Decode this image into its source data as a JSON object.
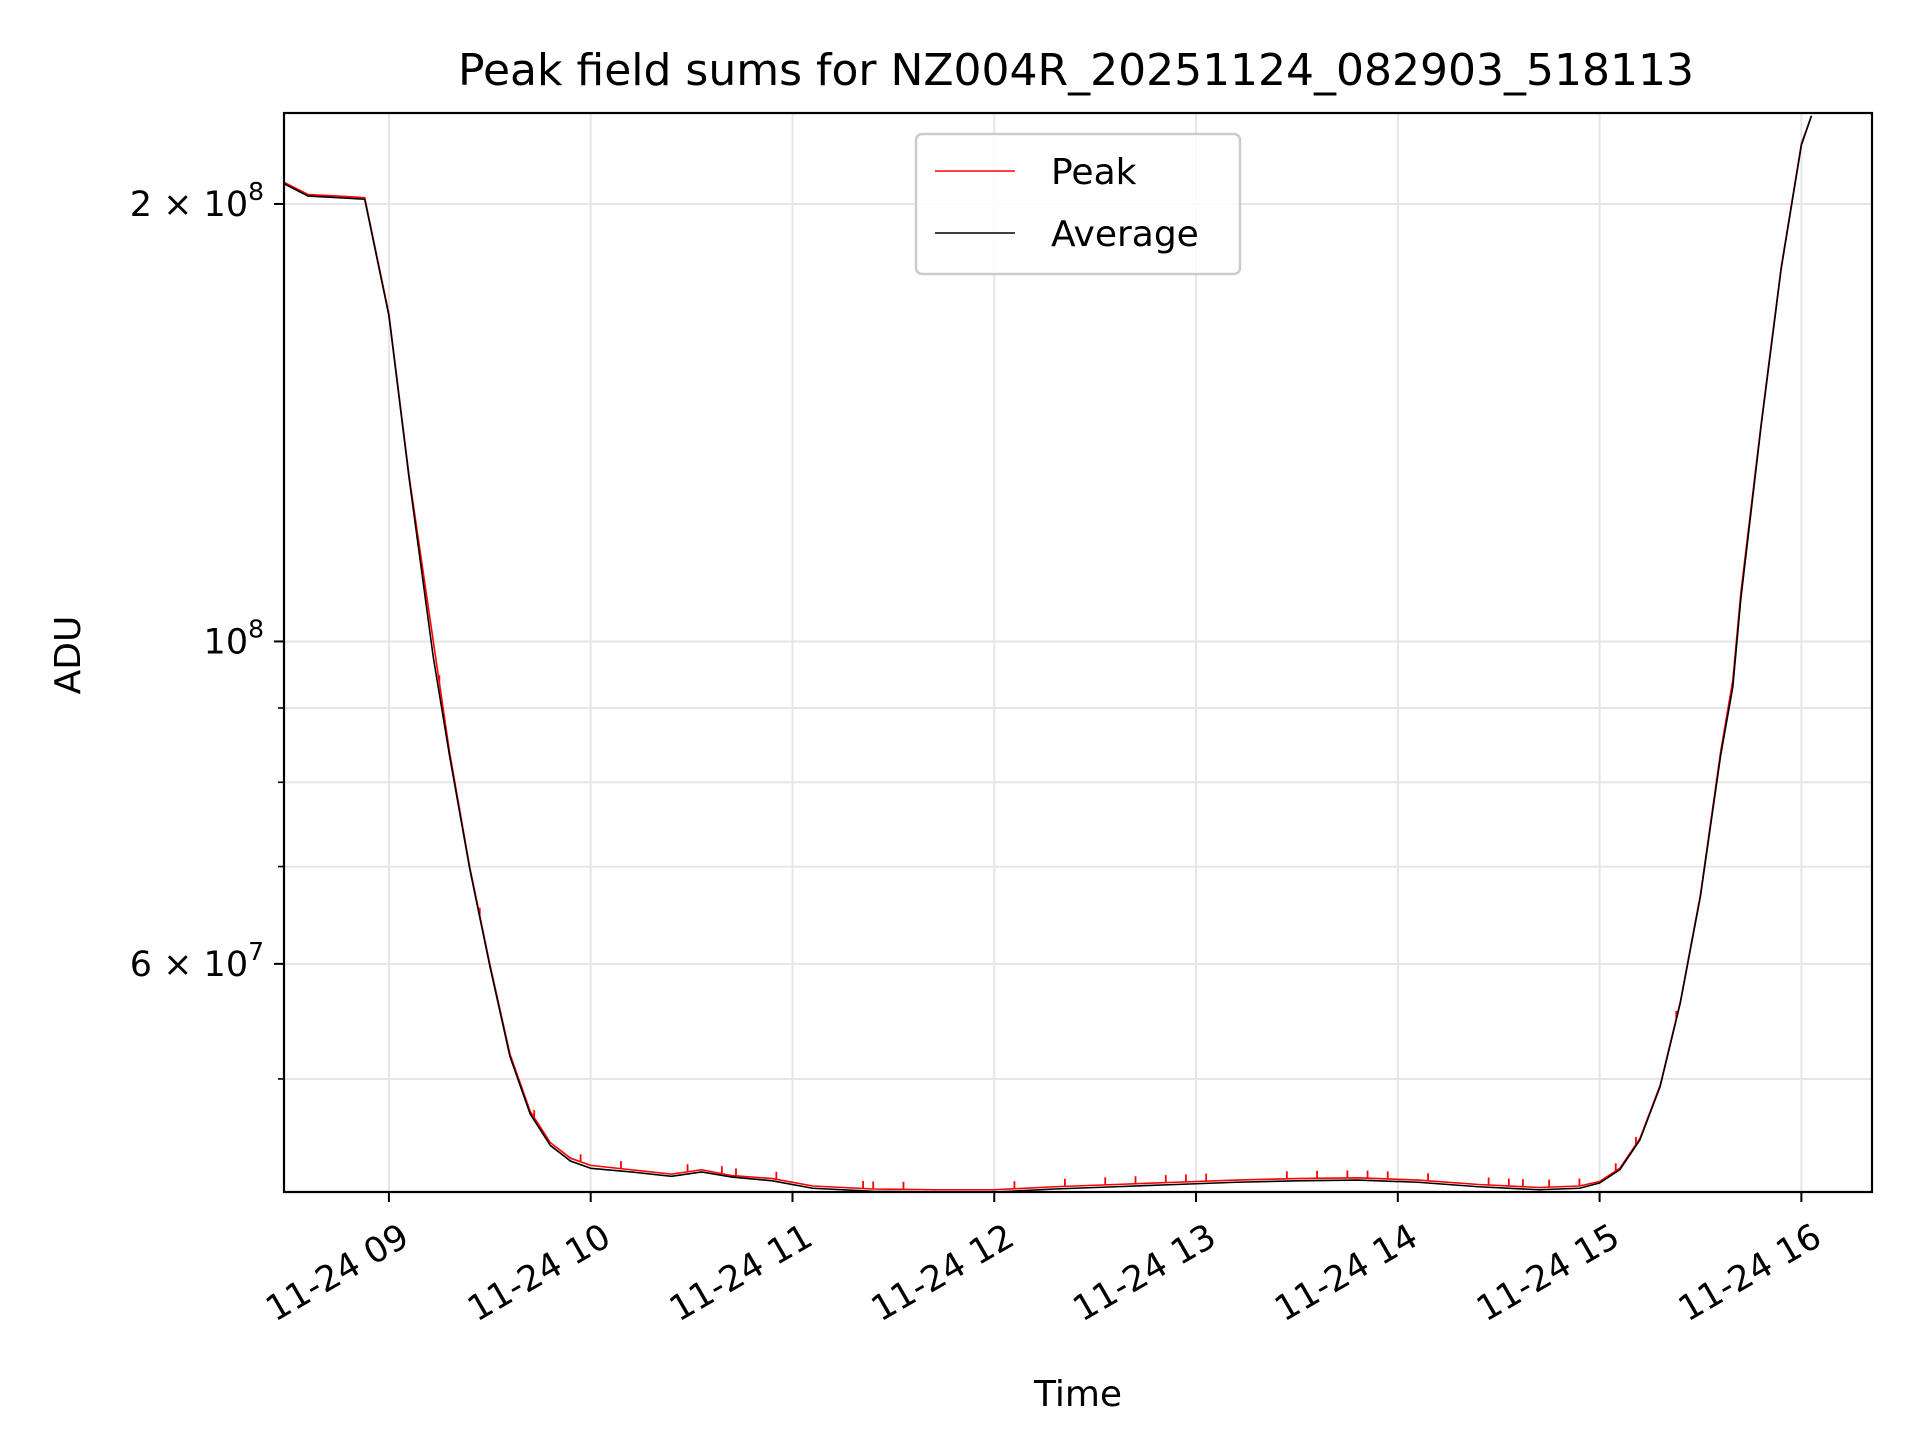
{
  "chart_data": {
    "type": "line",
    "title": "Peak field sums for NZ004R_20251124_082903_518113",
    "xlabel": "Time",
    "ylabel": "ADU",
    "x_unit": "hours since 2025-11-24 00:00",
    "xlim": [
      8.48,
      16.35
    ],
    "yscale": "log",
    "ylim": [
      41800000,
      231000000
    ],
    "grid": true,
    "legend_position": "upper-center",
    "x_ticks": [
      {
        "value": 9,
        "label": "11-24 09"
      },
      {
        "value": 10,
        "label": "11-24 10"
      },
      {
        "value": 11,
        "label": "11-24 11"
      },
      {
        "value": 12,
        "label": "11-24 12"
      },
      {
        "value": 13,
        "label": "11-24 13"
      },
      {
        "value": 14,
        "label": "11-24 14"
      },
      {
        "value": 15,
        "label": "11-24 15"
      },
      {
        "value": 16,
        "label": "11-24 16"
      }
    ],
    "y_ticks": [
      {
        "value": 200000000,
        "base": "2 × 10",
        "exp": "8"
      },
      {
        "value": 100000000,
        "base": "10",
        "exp": "8"
      },
      {
        "value": 60000000,
        "base": "6 × 10",
        "exp": "7"
      }
    ],
    "y_minor_ticks": [
      50000000,
      70000000,
      80000000,
      90000000
    ],
    "series": [
      {
        "name": "Peak",
        "color": "#ff0000",
        "x": [
          8.48,
          8.6,
          8.75,
          8.88,
          9.0,
          9.1,
          9.22,
          9.3,
          9.4,
          9.5,
          9.6,
          9.7,
          9.8,
          9.9,
          10.0,
          10.2,
          10.4,
          10.55,
          10.7,
          10.9,
          11.1,
          11.4,
          11.7,
          12.0,
          12.3,
          12.6,
          12.9,
          13.2,
          13.5,
          13.8,
          14.1,
          14.4,
          14.7,
          14.9,
          15.0,
          15.1,
          15.2,
          15.3,
          15.4,
          15.5,
          15.6,
          15.66,
          15.7,
          15.8,
          15.9,
          16.0,
          16.05
        ],
        "y": [
          207000000,
          203000000,
          202500000,
          202000000,
          168000000,
          130000000,
          100000000,
          84000000,
          70000000,
          60000000,
          52000000,
          47500000,
          45200000,
          44100000,
          43600000,
          43300000,
          43000000,
          43300000,
          42900000,
          42700000,
          42200000,
          42000000,
          41950000,
          41950000,
          42150000,
          42300000,
          42450000,
          42600000,
          42700000,
          42750000,
          42600000,
          42300000,
          42100000,
          42200000,
          42500000,
          43400000,
          45500000,
          49500000,
          56500000,
          67000000,
          84000000,
          94000000,
          108000000,
          141000000,
          181000000,
          220000000,
          230000000
        ],
        "spikes": [
          9.25,
          9.45,
          9.72,
          9.95,
          10.15,
          10.48,
          10.65,
          10.72,
          10.92,
          11.35,
          11.4,
          11.55,
          12.1,
          12.35,
          12.55,
          12.7,
          12.85,
          12.95,
          13.05,
          13.45,
          13.6,
          13.75,
          13.85,
          13.95,
          14.15,
          14.45,
          14.55,
          14.62,
          14.75,
          14.9,
          15.08,
          15.18,
          15.38
        ]
      },
      {
        "name": "Average",
        "color": "#000000",
        "x": [
          8.48,
          8.6,
          8.75,
          8.88,
          9.0,
          9.1,
          9.22,
          9.3,
          9.4,
          9.5,
          9.6,
          9.7,
          9.8,
          9.9,
          10.0,
          10.2,
          10.4,
          10.55,
          10.7,
          10.9,
          11.1,
          11.4,
          11.7,
          12.0,
          12.3,
          12.6,
          12.9,
          13.2,
          13.5,
          13.8,
          14.1,
          14.4,
          14.7,
          14.9,
          15.0,
          15.1,
          15.2,
          15.3,
          15.4,
          15.5,
          15.6,
          15.66,
          15.7,
          15.8,
          15.9,
          16.0,
          16.05
        ],
        "y": [
          206500000,
          202500000,
          202000000,
          201500000,
          167500000,
          129500000,
          97500000,
          83500000,
          69800000,
          59800000,
          51800000,
          47300000,
          45000000,
          43900000,
          43400000,
          43150000,
          42850000,
          43150000,
          42800000,
          42550000,
          42050000,
          41850000,
          41800000,
          41800000,
          42000000,
          42150000,
          42300000,
          42450000,
          42550000,
          42600000,
          42450000,
          42150000,
          41950000,
          42050000,
          42400000,
          43300000,
          45400000,
          49400000,
          56400000,
          66800000,
          83500000,
          93000000,
          107000000,
          140500000,
          180500000,
          219500000,
          230000000
        ]
      }
    ]
  }
}
